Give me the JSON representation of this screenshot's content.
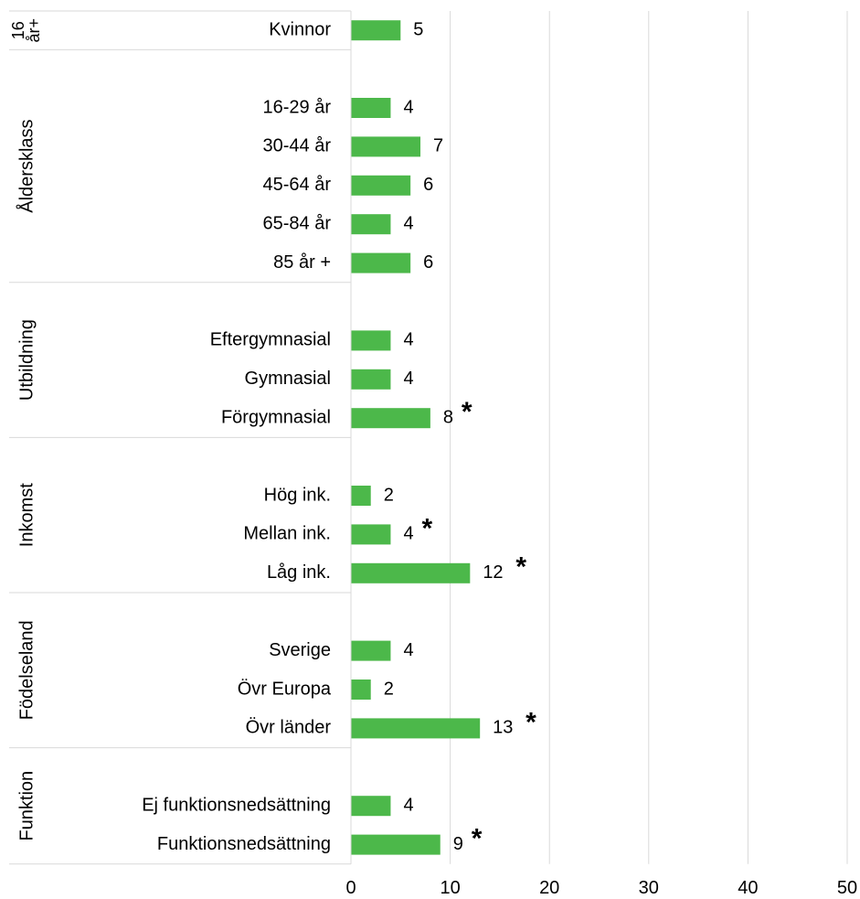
{
  "chart_data": {
    "type": "bar",
    "orientation": "horizontal",
    "color": "#4cb84a",
    "xlim": [
      0,
      50
    ],
    "xticks": [
      0,
      10,
      20,
      30,
      40,
      50
    ],
    "grid": true,
    "groups": [
      {
        "name": [
          "16",
          "år+"
        ],
        "categories": [
          "Kvinnor"
        ],
        "values": [
          5
        ],
        "markers": [
          null
        ]
      },
      {
        "name": [
          "Åldersklass"
        ],
        "categories": [
          "16-29 år",
          "30-44 år",
          "45-64 år",
          "65-84 år",
          "85 år +"
        ],
        "values": [
          4,
          7,
          6,
          4,
          6
        ],
        "markers": [
          null,
          null,
          null,
          null,
          null
        ]
      },
      {
        "name": [
          "Utbildning"
        ],
        "categories": [
          "Eftergymnasial",
          "Gymnasial",
          "Förgymnasial"
        ],
        "values": [
          4,
          4,
          8
        ],
        "markers": [
          null,
          null,
          "*"
        ]
      },
      {
        "name": [
          "Inkomst"
        ],
        "categories": [
          "Hög ink.",
          "Mellan ink.",
          "Låg ink."
        ],
        "values": [
          2,
          4,
          12
        ],
        "markers": [
          null,
          "*",
          "*"
        ]
      },
      {
        "name": [
          "Födelseland"
        ],
        "categories": [
          "Sverige",
          "Övr Europa",
          "Övr länder"
        ],
        "values": [
          4,
          2,
          13
        ],
        "markers": [
          null,
          null,
          "*"
        ]
      },
      {
        "name": [
          "Funktion"
        ],
        "categories": [
          "Ej funktionsnedsättning",
          "Funktionsnedsättning"
        ],
        "values": [
          4,
          9
        ],
        "markers": [
          null,
          "*"
        ]
      }
    ]
  }
}
